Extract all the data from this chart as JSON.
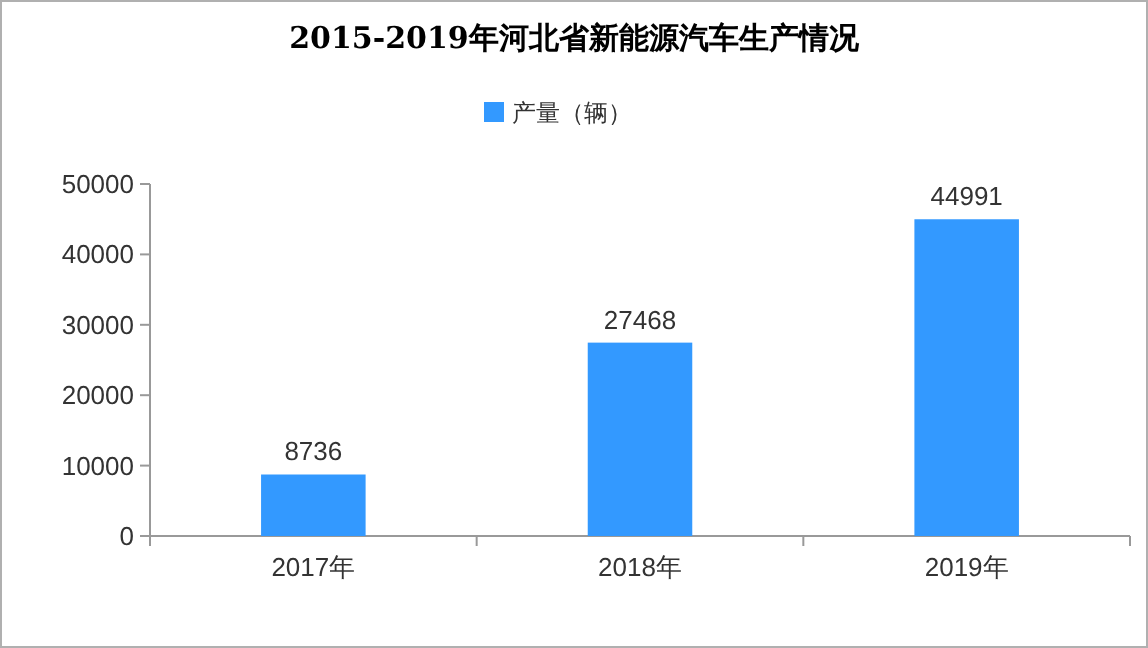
{
  "chart_data": {
    "type": "bar",
    "title": "2015-2019年河北省新能源汽车生产情况",
    "categories": [
      "2017年",
      "2018年",
      "2019年"
    ],
    "series": [
      {
        "name": "产量（辆）",
        "color": "#3399ff",
        "values": [
          8736,
          27468,
          44991
        ]
      }
    ],
    "ylim": [
      0,
      50000
    ],
    "yticks": [
      0,
      10000,
      20000,
      30000,
      40000,
      50000
    ],
    "data_labels": true,
    "legend": "top"
  }
}
